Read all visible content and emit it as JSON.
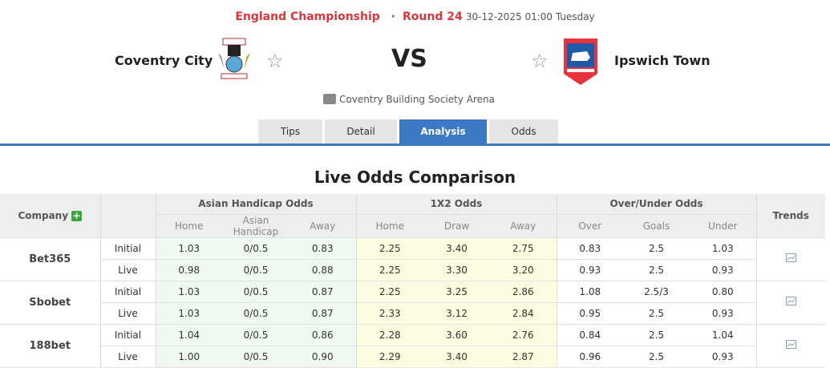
{
  "match": {
    "league": "England Championship",
    "round": "Round 24",
    "datetime": "30-12-2025 01:00 Tuesday",
    "home": "Coventry City",
    "away": "Ipswich Town",
    "vs": "VS",
    "venue": "Coventry Building Society Arena"
  },
  "tabs": [
    {
      "label": "Tips"
    },
    {
      "label": "Detail"
    },
    {
      "label": "Analysis",
      "active": true
    },
    {
      "label": "Odds"
    }
  ],
  "section_title": "Live Odds Comparison",
  "table": {
    "company_header": "Company",
    "trends_header": "Trends",
    "groups": [
      "Asian Handicap Odds",
      "1X2 Odds",
      "Over/Under Odds"
    ],
    "subheaders": [
      "Home",
      "Asian Handicap",
      "Away",
      "Home",
      "Draw",
      "Away",
      "Over",
      "Goals",
      "Under"
    ],
    "companies": [
      {
        "name": "Bet365",
        "rows": [
          {
            "type": "Initial",
            "v": [
              "1.03",
              "0/0.5",
              "0.83",
              "2.25",
              "3.40",
              "2.75",
              "0.83",
              "2.5",
              "1.03"
            ]
          },
          {
            "type": "Live",
            "v": [
              "0.98",
              "0/0.5",
              "0.88",
              "2.25",
              "3.30",
              "3.20",
              "0.93",
              "2.5",
              "0.93"
            ]
          }
        ]
      },
      {
        "name": "Sbobet",
        "rows": [
          {
            "type": "Initial",
            "v": [
              "1.03",
              "0/0.5",
              "0.87",
              "2.25",
              "3.25",
              "2.86",
              "1.08",
              "2.5/3",
              "0.80"
            ]
          },
          {
            "type": "Live",
            "v": [
              "1.03",
              "0/0.5",
              "0.87",
              "2.33",
              "3.12",
              "2.84",
              "0.95",
              "2.5",
              "0.93"
            ]
          }
        ]
      },
      {
        "name": "188bet",
        "rows": [
          {
            "type": "Initial",
            "v": [
              "1.04",
              "0/0.5",
              "0.86",
              "2.28",
              "3.60",
              "2.76",
              "0.84",
              "2.5",
              "1.04"
            ]
          },
          {
            "type": "Live",
            "v": [
              "1.00",
              "0/0.5",
              "0.90",
              "2.29",
              "3.40",
              "2.87",
              "0.96",
              "2.5",
              "0.93"
            ]
          }
        ]
      }
    ]
  },
  "colors": {
    "accent": "#3d7ac6",
    "league": "#d9363e",
    "ah_bg": "#f0f9ef",
    "x12_bg": "#fdfce0"
  }
}
